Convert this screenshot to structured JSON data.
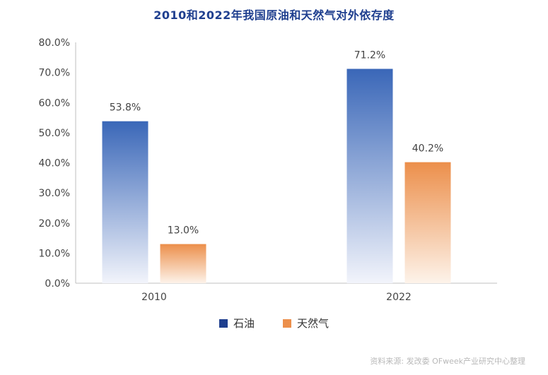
{
  "chart_data": {
    "type": "bar",
    "title": "2010和2022年我国原油和天然气对外依存度",
    "categories": [
      "2010",
      "2022"
    ],
    "series": [
      {
        "name": "石油",
        "values": [
          53.8,
          71.2
        ],
        "value_labels": [
          "53.8%",
          "71.2%"
        ],
        "color": "#3a67b8"
      },
      {
        "name": "天然气",
        "values": [
          13.0,
          40.2
        ],
        "value_labels": [
          "13.0%",
          "40.2%"
        ],
        "color": "#ec8f4b"
      }
    ],
    "yticks": [
      0,
      10,
      20,
      30,
      40,
      50,
      60,
      70,
      80
    ],
    "ytick_labels": [
      "0.0%",
      "10.0%",
      "20.0%",
      "30.0%",
      "40.0%",
      "50.0%",
      "60.0%",
      "70.0%",
      "80.0%"
    ],
    "ylim": [
      0,
      80
    ],
    "xlabel": "",
    "ylabel": "",
    "legend_position": "bottom-center",
    "legend_swatches": [
      "#1f3f8f",
      "#ec8f4b"
    ]
  },
  "source": "资料来源: 发改委 OFweek产业研究中心整理"
}
